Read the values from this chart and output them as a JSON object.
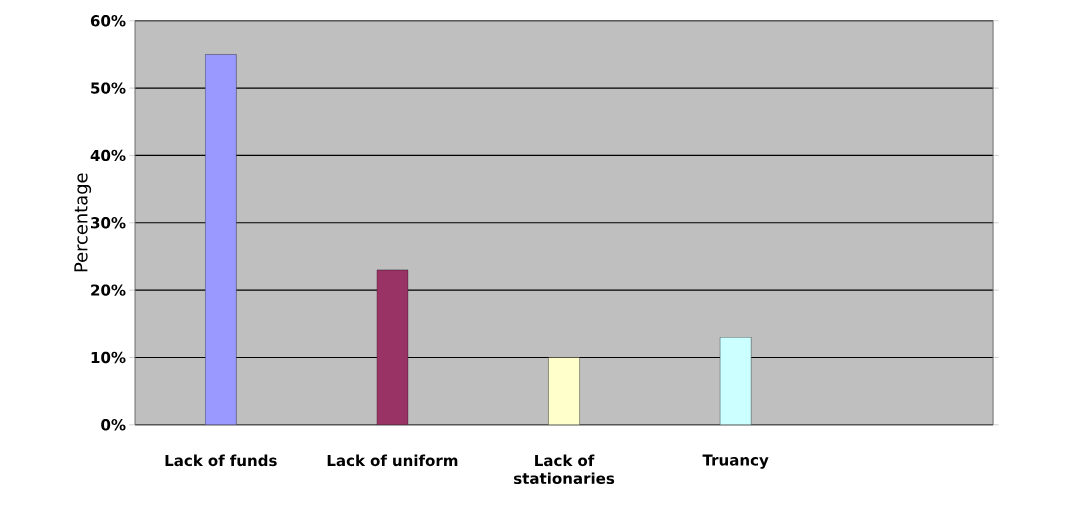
{
  "chart_data": {
    "type": "bar",
    "ylabel": "Percentage",
    "categories": [
      "Lack of funds",
      "Lack of uniform",
      "Lack of stationaries",
      "Truancy",
      null
    ],
    "values": [
      55,
      23,
      10,
      13,
      null
    ],
    "colors": [
      "#9999ff",
      "#993366",
      "#ffffcc",
      "#ccffff",
      "#c0c0c0"
    ],
    "ylim": [
      0,
      60
    ],
    "yticks": [
      {
        "value": 0,
        "label": "0%"
      },
      {
        "value": 10,
        "label": "10%"
      },
      {
        "value": 20,
        "label": "20%"
      },
      {
        "value": 30,
        "label": "30%"
      },
      {
        "value": 40,
        "label": "40%"
      },
      {
        "value": 50,
        "label": "50%"
      },
      {
        "value": 60,
        "label": "60%"
      }
    ],
    "grid": "y"
  }
}
